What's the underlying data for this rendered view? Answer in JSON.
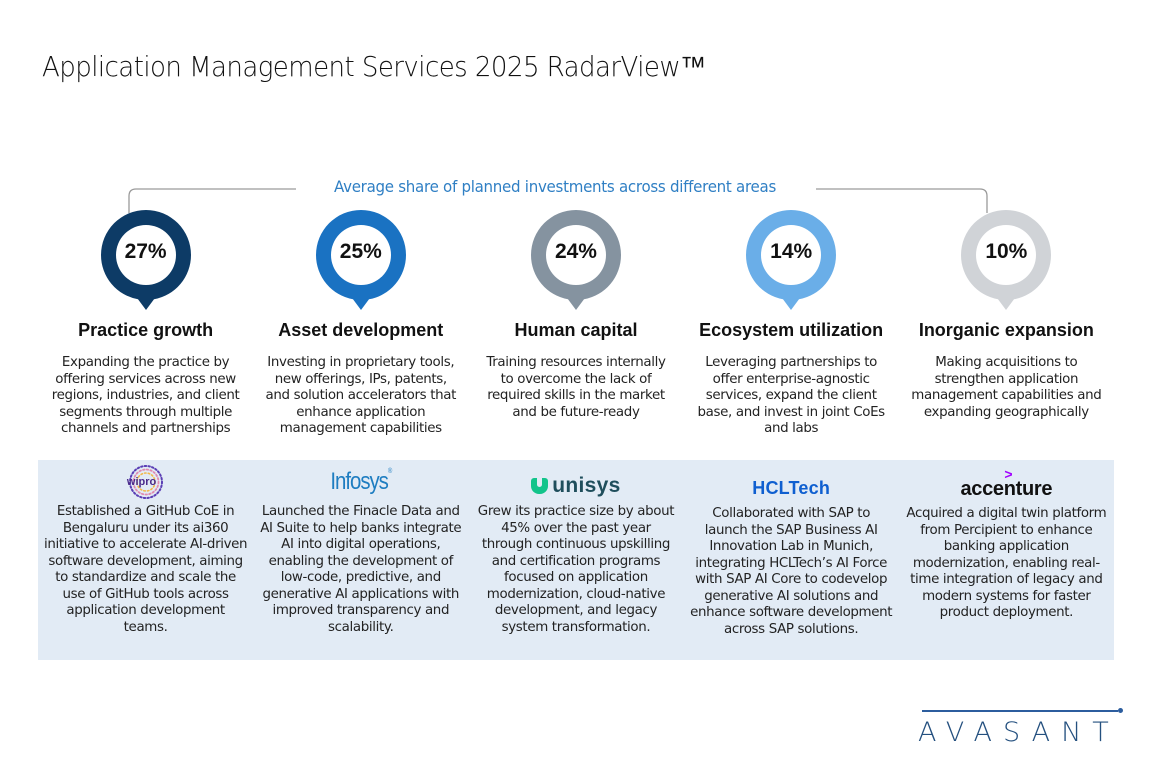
{
  "title": "Application Management Services 2025 RadarView™",
  "subtitle": "Average share of planned investments across different areas",
  "areas": [
    {
      "value": "27%",
      "share": 27,
      "color": "#0d3b66",
      "title": "Practice growth",
      "description": "Expanding the practice by offering services across new regions, industries, and client segments through multiple channels and partnerships"
    },
    {
      "value": "25%",
      "share": 25,
      "color": "#1a72c2",
      "title": "Asset development",
      "description": "Investing in proprietary tools, new offerings, IPs, patents, and solution accelerators that enhance application management capabilities"
    },
    {
      "value": "24%",
      "share": 24,
      "color": "#8593a0",
      "title": "Human capital",
      "description": "Training resources internally to overcome the lack of required skills in the market and be future-ready"
    },
    {
      "value": "14%",
      "share": 14,
      "color": "#6aaee8",
      "title": "Ecosystem utilization",
      "description": "Leveraging partnerships to offer enterprise-agnostic services, expand the client base, and invest in joint CoEs and labs"
    },
    {
      "value": "10%",
      "share": 10,
      "color": "#d0d3d7",
      "title": "Inorganic expansion",
      "description": "Making acquisitions to strengthen application management capabilities and expanding geographically"
    }
  ],
  "examples": [
    {
      "company": "wipro",
      "text": "Established a GitHub CoE in Bengaluru under its ai360 initiative to accelerate AI-driven software development, aiming to standardize and scale the use of GitHub tools across application development teams."
    },
    {
      "company": "Infosys",
      "text": "Launched the Finacle Data and AI Suite to help banks integrate AI into digital operations, enabling the development of low-code, predictive, and generative AI applications with improved transparency and scalability."
    },
    {
      "company": "unisys",
      "text": "Grew its practice size by about 45% over the past year through continuous upskilling and certification programs focused on application modernization, cloud-native development, and legacy system transformation."
    },
    {
      "company": "HCLTech",
      "text": "Collaborated with SAP to launch the SAP Business AI Innovation Lab in Munich, integrating HCLTech’s AI Force with SAP AI Core to codevelop generative AI solutions and enhance software development across SAP solutions."
    },
    {
      "company": "accenture",
      "text": "Acquired a digital twin platform from Percipient to enhance banking application modernization, enabling real-time integration of legacy and modern systems for faster product deployment."
    }
  ],
  "logos": {
    "infosys_mark": "®",
    "accenture_mark": ">"
  },
  "brand": {
    "name": "AVASANT",
    "color": "#24507f"
  },
  "colors": {
    "subtitle": "#2f7fc4",
    "examples_background": "#e2ebf5"
  }
}
